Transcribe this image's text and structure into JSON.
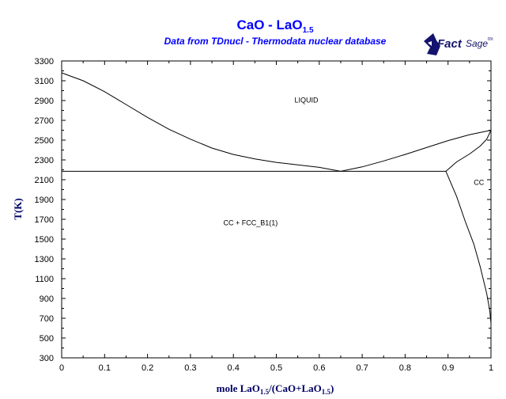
{
  "chart_data": {
    "type": "line",
    "title": "CaO - LaO",
    "title_subscript": "1.5",
    "subtitle": "Data from TDnucl - Thermodata nuclear database",
    "logo": {
      "main": "Fact",
      "secondary": "Sage",
      "trademark": "tm"
    },
    "xlabel": {
      "pre": "mole LaO",
      "sub1": "1.5",
      "mid": "/(CaO+LaO",
      "sub2": "1.5",
      "post": ")"
    },
    "ylabel": "T(K)",
    "xlim": [
      0,
      1
    ],
    "ylim": [
      300,
      3300
    ],
    "x_ticks": [
      "0",
      "0.1",
      "0.2",
      "0.3",
      "0.4",
      "0.5",
      "0.6",
      "0.7",
      "0.8",
      "0.9",
      "1"
    ],
    "y_ticks": [
      "300",
      "500",
      "700",
      "900",
      "1100",
      "1300",
      "1500",
      "1700",
      "1900",
      "2100",
      "2300",
      "2500",
      "2700",
      "2900",
      "3100",
      "3300"
    ],
    "grid": false,
    "line_color": "#000000",
    "annotations": [
      {
        "text": "LIQUID",
        "x": 0.57,
        "y": 2880
      },
      {
        "text": "CC",
        "x": 0.972,
        "y": 2050
      },
      {
        "text": "CC + FCC_B1(1)",
        "x": 0.44,
        "y": 1640
      }
    ],
    "series": [
      {
        "points": [
          [
            0.0,
            3180
          ],
          [
            0.05,
            3100
          ],
          [
            0.1,
            2990
          ],
          [
            0.15,
            2860
          ],
          [
            0.2,
            2730
          ],
          [
            0.25,
            2610
          ],
          [
            0.3,
            2510
          ],
          [
            0.35,
            2420
          ],
          [
            0.4,
            2355
          ],
          [
            0.45,
            2310
          ],
          [
            0.5,
            2275
          ],
          [
            0.55,
            2250
          ],
          [
            0.6,
            2225
          ],
          [
            0.65,
            2185
          ]
        ]
      },
      {
        "points": [
          [
            0.65,
            2185
          ],
          [
            0.7,
            2230
          ],
          [
            0.75,
            2290
          ],
          [
            0.8,
            2355
          ],
          [
            0.85,
            2425
          ],
          [
            0.9,
            2495
          ],
          [
            0.95,
            2555
          ],
          [
            1.0,
            2600
          ]
        ]
      },
      {
        "points": [
          [
            0.0,
            2185
          ],
          [
            0.895,
            2185
          ]
        ]
      },
      {
        "points": [
          [
            0.895,
            2185
          ],
          [
            0.92,
            2280
          ],
          [
            0.95,
            2360
          ],
          [
            0.975,
            2440
          ],
          [
            0.99,
            2510
          ],
          [
            1.0,
            2600
          ]
        ]
      },
      {
        "points": [
          [
            0.895,
            2185
          ],
          [
            0.92,
            1930
          ],
          [
            0.94,
            1680
          ],
          [
            0.96,
            1450
          ],
          [
            0.975,
            1220
          ],
          [
            0.99,
            950
          ],
          [
            0.997,
            780
          ],
          [
            1.0,
            650
          ]
        ]
      }
    ]
  }
}
